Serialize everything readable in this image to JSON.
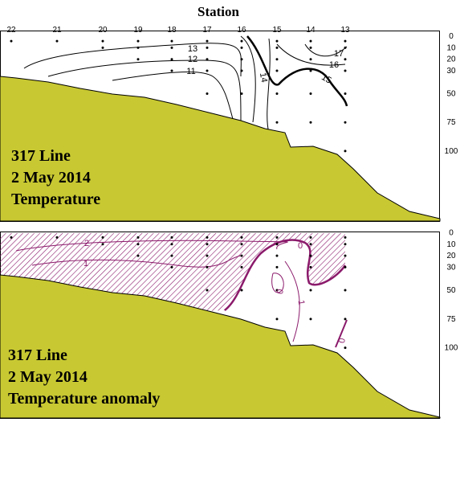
{
  "chart_data": [
    {
      "type": "contour",
      "title": "Station",
      "categories": [
        "22",
        "21",
        "20",
        "19",
        "18",
        "17",
        "16",
        "15",
        "14",
        "13"
      ],
      "ylim": [
        -5,
        161
      ],
      "yticks": [
        0,
        10,
        20,
        30,
        50,
        75,
        100
      ],
      "contour_labels": [
        "17",
        "16",
        "15",
        "14",
        "13",
        "12",
        "11"
      ],
      "text_lines": [
        "317 Line",
        "2 May 2014",
        "Temperature"
      ]
    },
    {
      "type": "contour",
      "ylim": [
        -1,
        161
      ],
      "yticks": [
        0,
        10,
        20,
        30,
        50,
        75,
        100
      ],
      "contour_labels": [
        "2",
        "1",
        "0",
        "0",
        "1",
        "0"
      ],
      "text_lines": [
        "317 Line",
        "2 May 2014",
        "Temperature anomaly"
      ]
    }
  ]
}
